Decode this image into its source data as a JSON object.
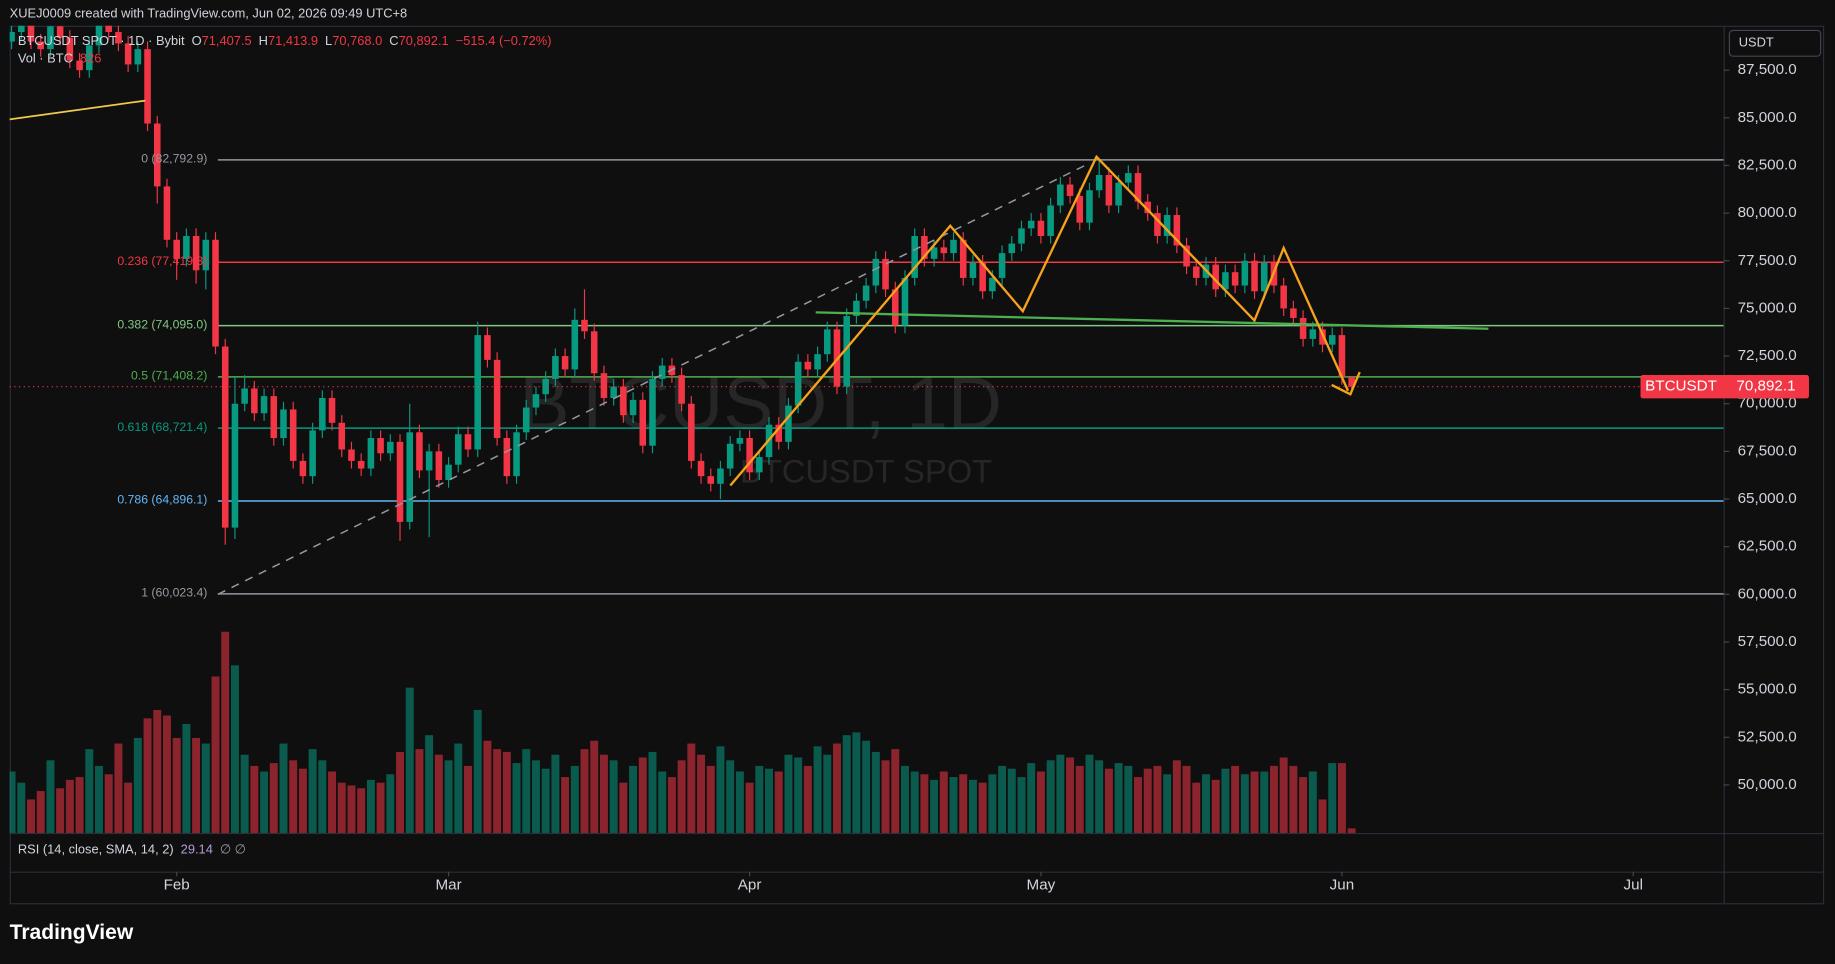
{
  "chart_data": {
    "type": "candlestick",
    "header": "XUEJ0009 created with TradingView.com, Jun 02, 2026 09:49 UTC+8",
    "symbol": "BTCUSDT SPOT · 1D · Bybit",
    "legend": [
      {
        "key": "O",
        "value": "71,407.5"
      },
      {
        "key": "H",
        "value": "71,413.9"
      },
      {
        "key": "L",
        "value": "70,768.0"
      },
      {
        "key": "C",
        "value": "70,892.1"
      }
    ],
    "change": "−515.4 (−0.72%)",
    "volume_label": "Vol · BTC",
    "volume_last": "826",
    "currency": "USDT",
    "watermark": "BTCUSDT, 1D",
    "watermark_sub": "BTCUSDT SPOT",
    "price_tag": {
      "name": "BTCUSDT",
      "label": "70,892.1"
    },
    "rsi": {
      "label": "RSI (14, close, SMA, 14, 2)",
      "value": "29.14",
      "extra": "∅ ∅"
    },
    "footer": "TradingView",
    "up_color": "#089981",
    "down_color": "#f23645",
    "xlim": [
      -0.2,
      176.3
    ],
    "xticks": [
      {
        "value": 17,
        "label": "Feb"
      },
      {
        "value": 45,
        "label": "Mar"
      },
      {
        "value": 76,
        "label": "Apr"
      },
      {
        "value": 106,
        "label": "May"
      },
      {
        "value": 137,
        "label": "Jun"
      },
      {
        "value": 167,
        "label": "Jul"
      }
    ],
    "ylim": [
      47480,
      89830
    ],
    "yticks": [
      {
        "value": 50000,
        "label": "50,000.0"
      },
      {
        "value": 52500,
        "label": "52,500.0"
      },
      {
        "value": 55000,
        "label": "55,000.0"
      },
      {
        "value": 57500,
        "label": "57,500.0"
      },
      {
        "value": 60000,
        "label": "60,000.0"
      },
      {
        "value": 62500,
        "label": "62,500.0"
      },
      {
        "value": 65000,
        "label": "65,000.0"
      },
      {
        "value": 67500,
        "label": "67,500.0"
      },
      {
        "value": 70000,
        "label": "70,000.0"
      },
      {
        "value": 72500,
        "label": "72,500.0"
      },
      {
        "value": 75000,
        "label": "75,000.0"
      },
      {
        "value": 77500,
        "label": "77,500.0"
      },
      {
        "value": 80000,
        "label": "80,000.0"
      },
      {
        "value": 82500,
        "label": "82,500.0"
      },
      {
        "value": 85000,
        "label": "85,000.0"
      },
      {
        "value": 87500,
        "label": "87,500.0"
      }
    ],
    "fib": [
      {
        "price": 82792.9,
        "label": "0 (82,792.9)",
        "color": "#9598a1"
      },
      {
        "price": 77419.3,
        "label": "0.236 (77,419.3)",
        "color": "#f23645"
      },
      {
        "price": 74095.0,
        "label": "0.382 (74,095.0)",
        "color": "#81c784"
      },
      {
        "price": 71408.2,
        "label": "0.5 (71,408.2)",
        "color": "#4caf50"
      },
      {
        "price": 68721.4,
        "label": "0.618 (68,721.4)",
        "color": "#089981"
      },
      {
        "price": 64896.1,
        "label": "0.786 (64,896.1)",
        "color": "#64b5f6"
      },
      {
        "price": 60023.4,
        "label": "1 (60,023.4)",
        "color": "#9598a1"
      }
    ],
    "ohlc": [
      [
        89000,
        90300,
        88600,
        89500
      ],
      [
        89500,
        90600,
        89100,
        90200
      ],
      [
        90200,
        90600,
        88600,
        89000
      ],
      [
        89000,
        89400,
        88200,
        88600
      ],
      [
        88600,
        90200,
        88200,
        89800
      ],
      [
        89800,
        90200,
        88800,
        89200
      ],
      [
        89200,
        89600,
        87600,
        88000
      ],
      [
        88000,
        88400,
        87100,
        87500
      ],
      [
        87500,
        89200,
        87100,
        88800
      ],
      [
        88800,
        90300,
        88400,
        89900
      ],
      [
        89900,
        90300,
        89100,
        89500
      ],
      [
        89500,
        89900,
        88500,
        88900
      ],
      [
        88900,
        89300,
        87400,
        87800
      ],
      [
        87800,
        89000,
        87400,
        88600
      ],
      [
        88600,
        89000,
        84300,
        84700
      ],
      [
        84700,
        85100,
        80500,
        81400
      ],
      [
        81400,
        81800,
        78200,
        78600
      ],
      [
        78600,
        79000,
        76500,
        77600
      ],
      [
        77600,
        79200,
        77200,
        78800
      ],
      [
        78800,
        79200,
        76300,
        77000
      ],
      [
        77000,
        79000,
        76000,
        78600
      ],
      [
        78600,
        79000,
        72600,
        73000
      ],
      [
        73000,
        73400,
        62600,
        63500
      ],
      [
        63500,
        71400,
        62900,
        70000
      ],
      [
        70000,
        71500,
        69600,
        70800
      ],
      [
        70800,
        71200,
        69100,
        69500
      ],
      [
        69500,
        70800,
        69100,
        70400
      ],
      [
        70400,
        70800,
        67800,
        68200
      ],
      [
        68200,
        70100,
        67800,
        69700
      ],
      [
        69700,
        70100,
        66600,
        67000
      ],
      [
        67000,
        67400,
        65800,
        66200
      ],
      [
        66200,
        69000,
        65800,
        68600
      ],
      [
        68600,
        70700,
        68200,
        70300
      ],
      [
        70300,
        70700,
        68600,
        69000
      ],
      [
        69000,
        69400,
        67200,
        67600
      ],
      [
        67600,
        68000,
        66600,
        67000
      ],
      [
        67000,
        67400,
        66200,
        66600
      ],
      [
        66600,
        68600,
        66200,
        68200
      ],
      [
        68200,
        68600,
        67000,
        67400
      ],
      [
        67400,
        68400,
        67000,
        68000
      ],
      [
        68000,
        68400,
        62800,
        63800
      ],
      [
        63800,
        70000,
        63400,
        68500
      ],
      [
        68500,
        68900,
        66100,
        66500
      ],
      [
        66500,
        67900,
        63000,
        67500
      ],
      [
        67500,
        67900,
        65600,
        66000
      ],
      [
        66000,
        67200,
        65600,
        66800
      ],
      [
        66800,
        68800,
        66400,
        68400
      ],
      [
        68400,
        68800,
        67200,
        67600
      ],
      [
        67600,
        74300,
        67200,
        73600
      ],
      [
        73600,
        74000,
        71900,
        72300
      ],
      [
        72300,
        72700,
        67800,
        68200
      ],
      [
        68200,
        68600,
        65800,
        66200
      ],
      [
        66200,
        68900,
        65800,
        68500
      ],
      [
        68500,
        70200,
        68100,
        69800
      ],
      [
        69800,
        70900,
        69400,
        70500
      ],
      [
        70500,
        71700,
        70100,
        71300
      ],
      [
        71300,
        72900,
        70900,
        72500
      ],
      [
        72500,
        72900,
        71400,
        71800
      ],
      [
        71800,
        75000,
        71400,
        74400
      ],
      [
        74400,
        76000,
        73400,
        73800
      ],
      [
        73800,
        74200,
        71200,
        71600
      ],
      [
        71600,
        72000,
        69900,
        70300
      ],
      [
        70300,
        71300,
        69900,
        70900
      ],
      [
        70900,
        71300,
        69000,
        69400
      ],
      [
        69400,
        70600,
        69000,
        70200
      ],
      [
        70200,
        70600,
        67400,
        67800
      ],
      [
        67800,
        71700,
        67400,
        71300
      ],
      [
        71300,
        72400,
        70900,
        72000
      ],
      [
        72000,
        72400,
        71100,
        71500
      ],
      [
        71500,
        71900,
        69600,
        70000
      ],
      [
        70000,
        70400,
        66600,
        67000
      ],
      [
        67000,
        67400,
        65800,
        66200
      ],
      [
        66200,
        66600,
        65400,
        65800
      ],
      [
        65800,
        67000,
        65000,
        66600
      ],
      [
        66600,
        68300,
        66200,
        67900
      ],
      [
        67900,
        68600,
        67500,
        68200
      ],
      [
        68200,
        68600,
        66000,
        66400
      ],
      [
        66400,
        67600,
        66000,
        67200
      ],
      [
        67200,
        69300,
        66800,
        68900
      ],
      [
        68900,
        69300,
        67600,
        68000
      ],
      [
        68000,
        70300,
        67600,
        69900
      ],
      [
        69900,
        72600,
        69500,
        72200
      ],
      [
        72200,
        72600,
        71400,
        71800
      ],
      [
        71800,
        73000,
        71400,
        72600
      ],
      [
        72600,
        74300,
        72200,
        73900
      ],
      [
        73900,
        74300,
        70500,
        70900
      ],
      [
        70900,
        75000,
        70500,
        74600
      ],
      [
        74600,
        75800,
        74200,
        75400
      ],
      [
        75400,
        76600,
        75000,
        76200
      ],
      [
        76200,
        78000,
        75800,
        77600
      ],
      [
        77600,
        78000,
        75600,
        76000
      ],
      [
        76000,
        76400,
        73700,
        74100
      ],
      [
        74100,
        77000,
        73700,
        76600
      ],
      [
        76600,
        79200,
        76200,
        78800
      ],
      [
        78800,
        79200,
        77200,
        77600
      ],
      [
        77600,
        78600,
        77200,
        78200
      ],
      [
        78200,
        78600,
        77500,
        77900
      ],
      [
        77900,
        79000,
        77500,
        78600
      ],
      [
        78600,
        79000,
        76200,
        76600
      ],
      [
        76600,
        77800,
        76200,
        77400
      ],
      [
        77400,
        77800,
        75500,
        75900
      ],
      [
        75900,
        77000,
        75500,
        76600
      ],
      [
        76600,
        78300,
        76200,
        77900
      ],
      [
        77900,
        78800,
        77500,
        78400
      ],
      [
        78400,
        79600,
        78000,
        79200
      ],
      [
        79200,
        80000,
        78800,
        79600
      ],
      [
        79600,
        80000,
        78400,
        78800
      ],
      [
        78800,
        80800,
        78400,
        80400
      ],
      [
        80400,
        81900,
        80000,
        81500
      ],
      [
        81500,
        81900,
        80500,
        80900
      ],
      [
        80900,
        81300,
        79100,
        79500
      ],
      [
        79500,
        81600,
        79100,
        81200
      ],
      [
        81200,
        82800,
        80800,
        82000
      ],
      [
        82000,
        82400,
        80000,
        80400
      ],
      [
        80400,
        82000,
        80000,
        81600
      ],
      [
        81600,
        82500,
        81200,
        82100
      ],
      [
        82100,
        82500,
        80200,
        80600
      ],
      [
        80600,
        81000,
        79600,
        80000
      ],
      [
        80000,
        80400,
        78400,
        78800
      ],
      [
        78800,
        80300,
        78400,
        79900
      ],
      [
        79900,
        80300,
        77900,
        78300
      ],
      [
        78300,
        78700,
        76800,
        77200
      ],
      [
        77200,
        77600,
        76200,
        76600
      ],
      [
        76600,
        77700,
        76200,
        77300
      ],
      [
        77300,
        77700,
        75600,
        76000
      ],
      [
        76000,
        77300,
        75600,
        76900
      ],
      [
        76900,
        77300,
        75800,
        76200
      ],
      [
        76200,
        77900,
        75800,
        77500
      ],
      [
        77500,
        77900,
        75500,
        75900
      ],
      [
        75900,
        77800,
        75500,
        77400
      ],
      [
        77400,
        77800,
        75800,
        76200
      ],
      [
        76200,
        76600,
        74600,
        75000
      ],
      [
        75000,
        75400,
        74100,
        74500
      ],
      [
        74500,
        74900,
        73000,
        73400
      ],
      [
        73400,
        74300,
        73000,
        73900
      ],
      [
        73900,
        74300,
        72700,
        73100
      ],
      [
        73100,
        74000,
        72700,
        73600
      ],
      [
        73600,
        74000,
        71000,
        71400
      ],
      [
        71407.5,
        71413.9,
        70768.0,
        70892.1
      ]
    ],
    "volume": [
      11000,
      9000,
      6000,
      7500,
      13000,
      8000,
      9500,
      10000,
      15000,
      12000,
      10500,
      16000,
      9000,
      17000,
      20500,
      22000,
      21000,
      17000,
      19500,
      17000,
      16000,
      28000,
      36000,
      30000,
      14000,
      12000,
      11000,
      12500,
      16000,
      13000,
      11500,
      15000,
      13000,
      11000,
      9000,
      8500,
      8000,
      9500,
      9000,
      10500,
      14500,
      26000,
      15000,
      17500,
      14000,
      13000,
      16000,
      12000,
      22000,
      16500,
      15000,
      14500,
      12500,
      15000,
      13000,
      11500,
      14000,
      10000,
      12000,
      15000,
      16500,
      14000,
      13000,
      9000,
      12000,
      13500,
      14500,
      11000,
      10000,
      13000,
      16000,
      14000,
      12000,
      15500,
      13000,
      11000,
      9000,
      12000,
      11500,
      11000,
      14000,
      13500,
      12000,
      15500,
      14000,
      16000,
      17500,
      18000,
      16500,
      14500,
      13000,
      15000,
      12000,
      11000,
      10500,
      9500,
      11000,
      10000,
      10500,
      9500,
      9000,
      10500,
      12000,
      11500,
      10000,
      12500,
      11000,
      13000,
      14000,
      13500,
      12000,
      14000,
      13000,
      11500,
      12500,
      12000,
      10000,
      11500,
      12000,
      10500,
      13000,
      12000,
      9000,
      10500,
      9500,
      11500,
      12000,
      10500,
      11000,
      11000,
      12000,
      13500,
      12000,
      10000,
      11000,
      6000,
      12500,
      12500,
      826
    ]
  }
}
